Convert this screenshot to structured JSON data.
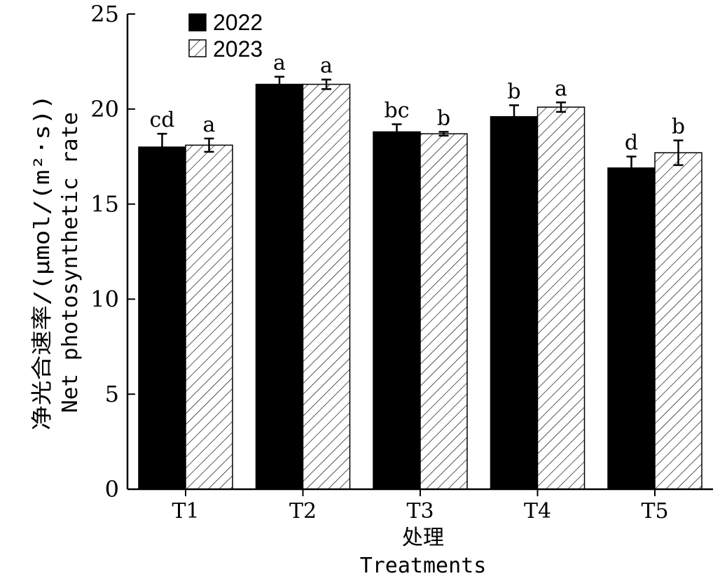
{
  "chart_data": {
    "type": "bar",
    "categories": [
      "T1",
      "T2",
      "T3",
      "T4",
      "T5"
    ],
    "series": [
      {
        "name": "2022",
        "fill": "solid",
        "color": "#000000",
        "values": [
          18.0,
          21.3,
          18.8,
          19.6,
          16.9
        ],
        "errors": [
          0.7,
          0.4,
          0.4,
          0.6,
          0.6
        ],
        "letters": [
          "cd",
          "a",
          "bc",
          "b",
          "d"
        ]
      },
      {
        "name": "2023",
        "fill": "hatched",
        "color": "#ffffff",
        "values": [
          18.1,
          21.3,
          18.7,
          20.1,
          17.7
        ],
        "errors": [
          0.35,
          0.25,
          0.1,
          0.25,
          0.65
        ],
        "letters": [
          "a",
          "a",
          "b",
          "a",
          "b"
        ]
      }
    ],
    "ylim": [
      0,
      25
    ],
    "yticks": [
      "0",
      "5",
      "10",
      "15",
      "20",
      "25"
    ],
    "ylabel_cn": "净光合速率/(μmol/(m²·s))",
    "ylabel_en": "Net photosynthetic rate",
    "xlabel_cn": "处理",
    "xlabel_en": "Treatments",
    "legend_position": "top-left",
    "grid": false
  }
}
